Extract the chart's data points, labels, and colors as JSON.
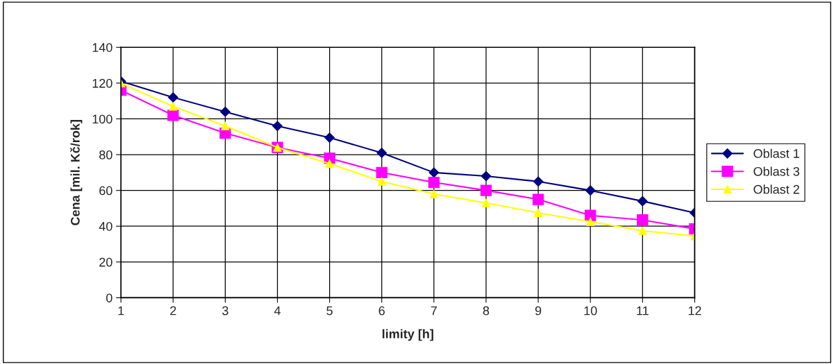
{
  "chart_data": {
    "type": "line",
    "xlabel": "limity [h]",
    "ylabel": "Cena [mil. Kč/rok]",
    "x": [
      1,
      2,
      3,
      4,
      5,
      6,
      7,
      8,
      9,
      10,
      11,
      12
    ],
    "series": [
      {
        "name": "Oblast 1",
        "color": "#000080",
        "marker": "diamond",
        "values": [
          121,
          112,
          104,
          96,
          89.5,
          81,
          70,
          68,
          65,
          60,
          54,
          47.5
        ]
      },
      {
        "name": "Oblast 3",
        "color": "#ff00ff",
        "marker": "square",
        "values": [
          116,
          102,
          92,
          84,
          78,
          70,
          64.5,
          60,
          55,
          46,
          43.5,
          38.5
        ]
      },
      {
        "name": "Oblast 2",
        "color": "#ffff00",
        "marker": "triangle",
        "values": [
          120,
          107,
          96,
          84,
          75,
          65,
          58,
          53,
          47.5,
          42.5,
          37.5,
          34.5
        ]
      }
    ],
    "xlim": [
      1,
      12
    ],
    "xticks": [
      1,
      2,
      3,
      4,
      5,
      6,
      7,
      8,
      9,
      10,
      11,
      12
    ],
    "ylim": [
      0,
      140
    ],
    "yticks": [
      0,
      20,
      40,
      60,
      80,
      100,
      120,
      140
    ],
    "grid": true,
    "legend": "right",
    "line_style": "solid"
  }
}
